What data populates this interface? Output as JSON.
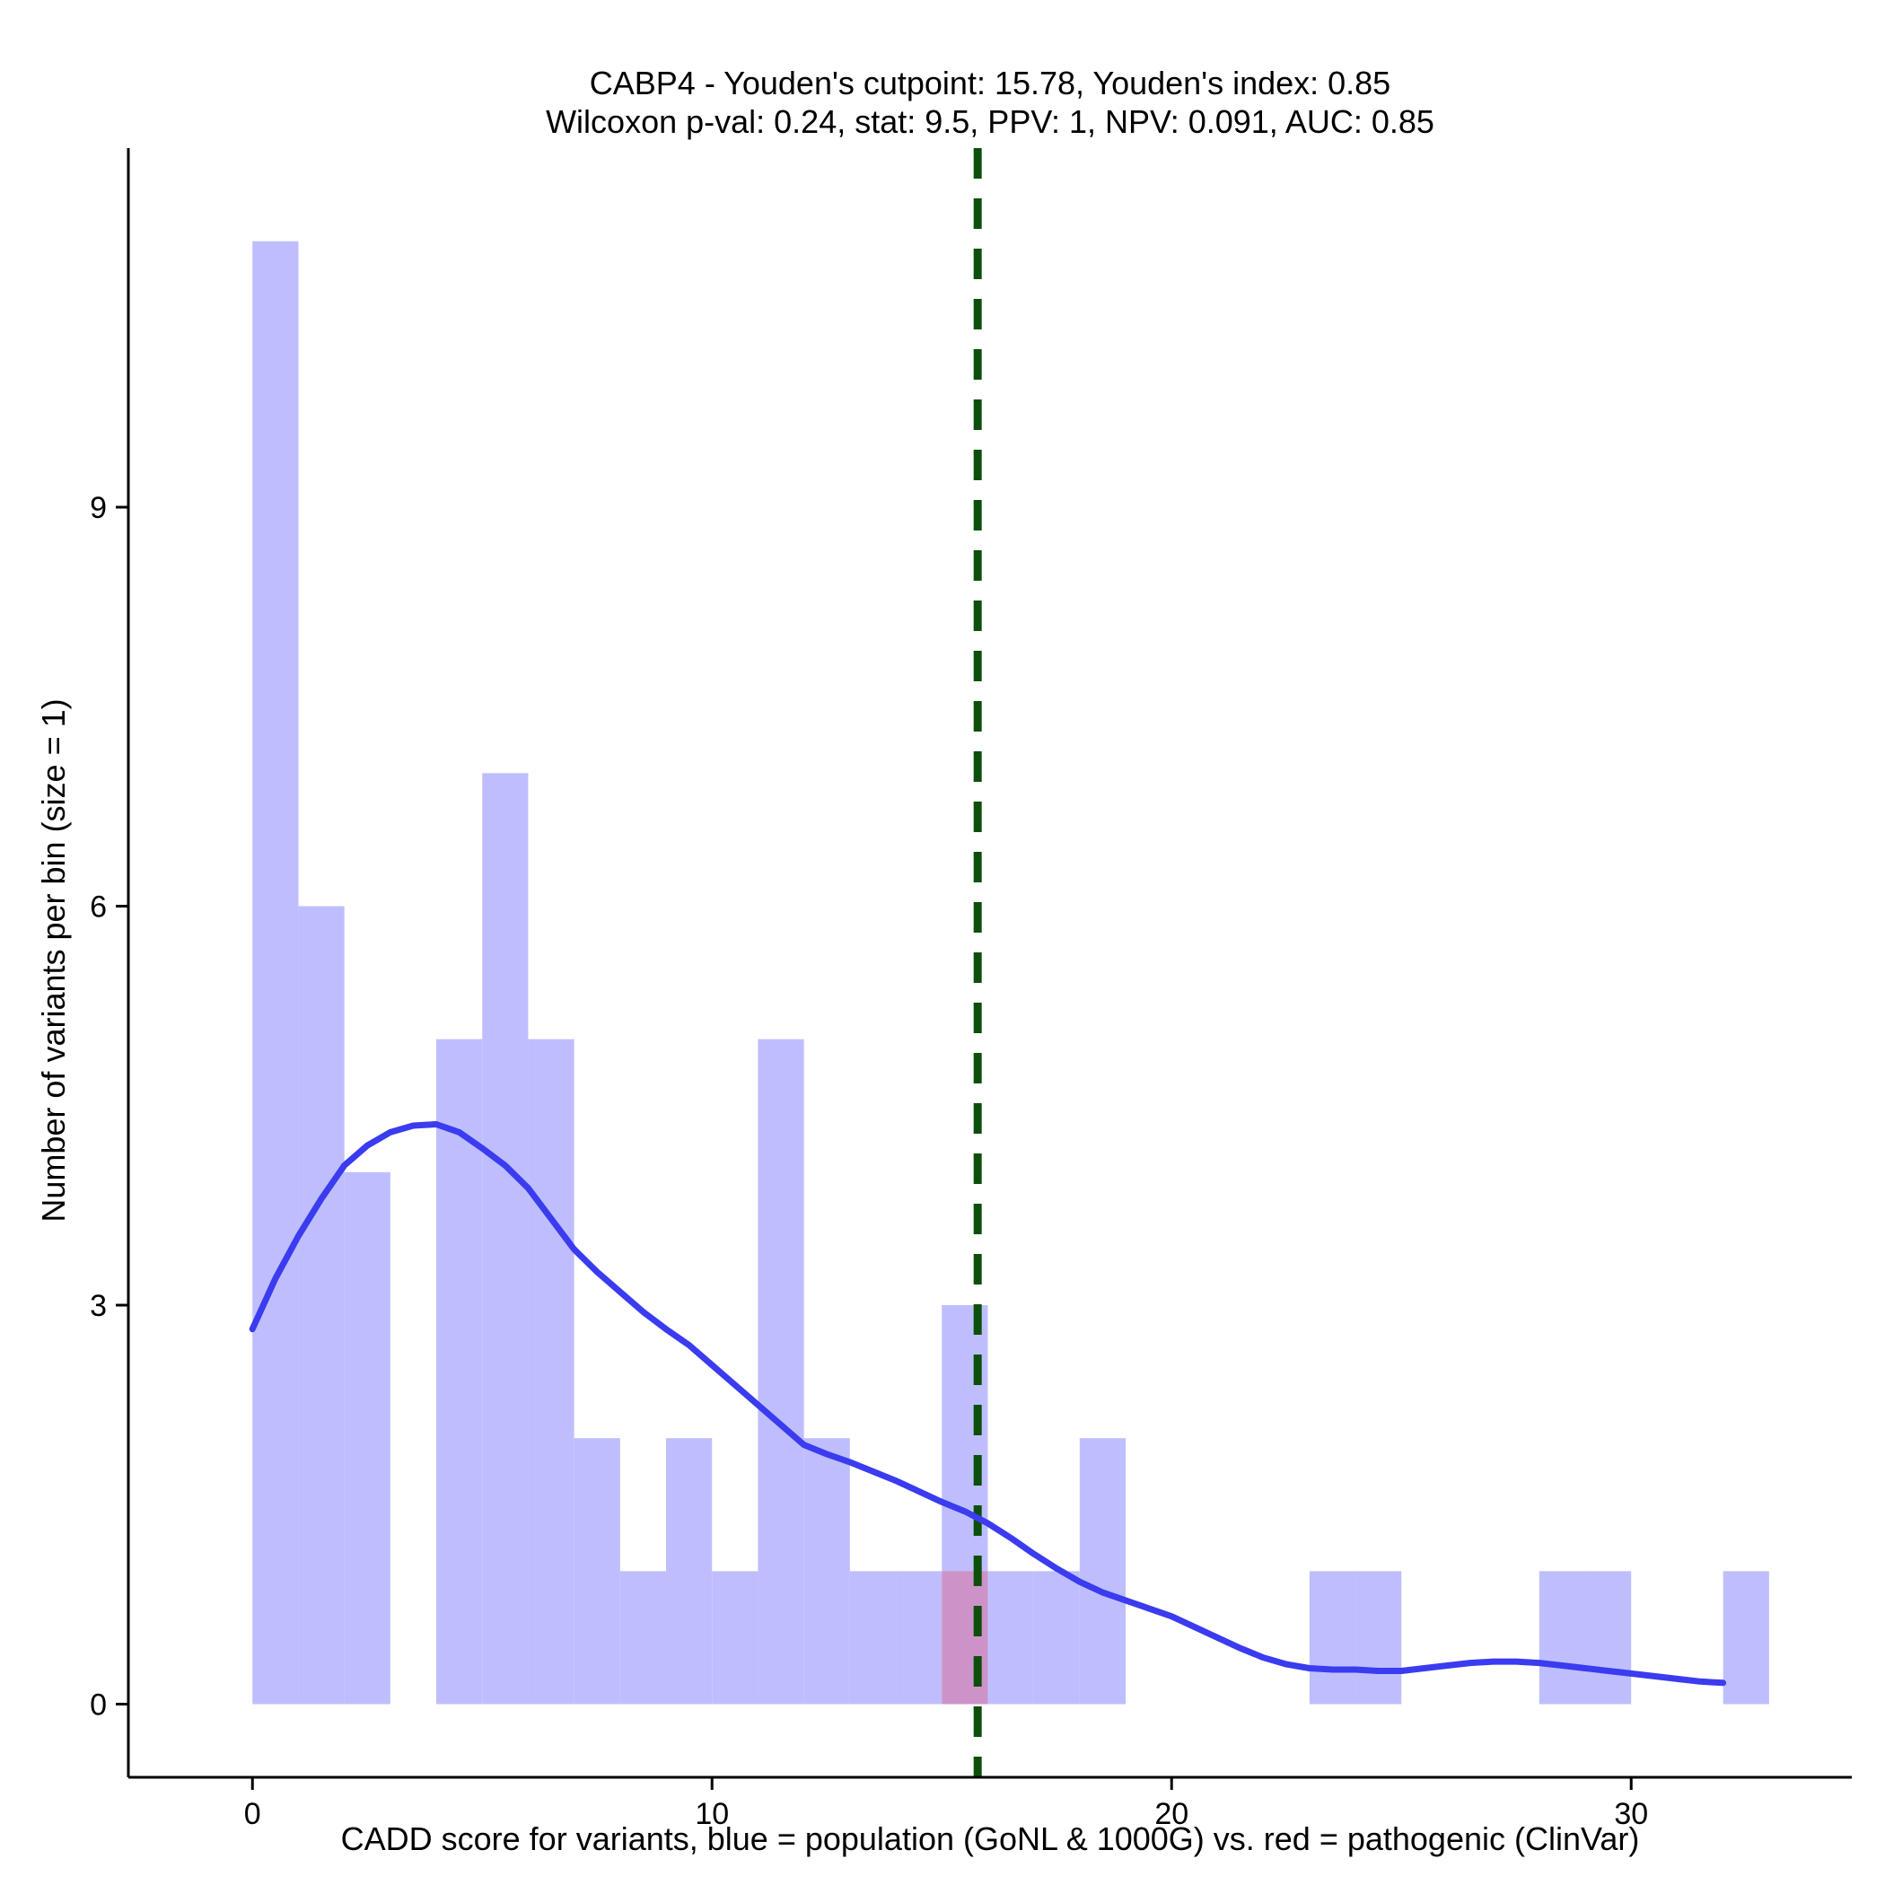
{
  "chart_data": {
    "type": "bar",
    "title_line1": "CABP4 - Youden's cutpoint: 15.78, Youden's index: 0.85",
    "title_line2": "Wilcoxon p-val: 0.24, stat: 9.5, PPV: 1, NPV: 0.091, AUC: 0.85",
    "xlabel": "CADD score for variants, blue = population (GoNL & 1000G) vs. red = pathogenic (ClinVar)",
    "ylabel": "Number of variants per bin (size = 1)",
    "xlim": [
      -2.7,
      34.8
    ],
    "ylim": [
      -0.55,
      11.7
    ],
    "x_ticks": [
      0,
      10,
      20,
      30
    ],
    "y_ticks": [
      0,
      3,
      6,
      9
    ],
    "bin_size": 1,
    "colors": {
      "population": "#bebeff",
      "pathogenic": "#d08cc0",
      "density": "#3b3bf0",
      "cutpoint": "#0b4f0b"
    },
    "series": [
      {
        "key": "population",
        "bins": [
          [
            0,
            11
          ],
          [
            1,
            6
          ],
          [
            2,
            4
          ],
          [
            4,
            5
          ],
          [
            5,
            7
          ],
          [
            6,
            5
          ],
          [
            7,
            2
          ],
          [
            8,
            1
          ],
          [
            9,
            2
          ],
          [
            10,
            1
          ],
          [
            11,
            5
          ],
          [
            12,
            2
          ],
          [
            13,
            1
          ],
          [
            14,
            1
          ],
          [
            15,
            3
          ],
          [
            16,
            1
          ],
          [
            17,
            1
          ],
          [
            18,
            2
          ],
          [
            23,
            1
          ],
          [
            24,
            1
          ],
          [
            28,
            1
          ],
          [
            29,
            1
          ],
          [
            32,
            1
          ]
        ]
      },
      {
        "key": "pathogenic",
        "bins": [
          [
            15,
            1
          ]
        ]
      }
    ],
    "density_curve": [
      [
        0,
        2.82
      ],
      [
        0.5,
        3.2
      ],
      [
        1,
        3.52
      ],
      [
        1.5,
        3.8
      ],
      [
        2,
        4.05
      ],
      [
        2.5,
        4.2
      ],
      [
        3,
        4.3
      ],
      [
        3.5,
        4.35
      ],
      [
        4,
        4.36
      ],
      [
        4.5,
        4.3
      ],
      [
        5,
        4.18
      ],
      [
        5.5,
        4.05
      ],
      [
        6,
        3.88
      ],
      [
        6.5,
        3.65
      ],
      [
        7,
        3.42
      ],
      [
        7.5,
        3.25
      ],
      [
        8,
        3.1
      ],
      [
        8.5,
        2.95
      ],
      [
        9,
        2.82
      ],
      [
        9.5,
        2.7
      ],
      [
        10,
        2.55
      ],
      [
        10.5,
        2.4
      ],
      [
        11,
        2.25
      ],
      [
        11.5,
        2.1
      ],
      [
        12,
        1.95
      ],
      [
        12.5,
        1.88
      ],
      [
        13,
        1.82
      ],
      [
        13.5,
        1.75
      ],
      [
        14,
        1.68
      ],
      [
        14.5,
        1.6
      ],
      [
        15,
        1.52
      ],
      [
        15.5,
        1.45
      ],
      [
        16,
        1.36
      ],
      [
        16.5,
        1.25
      ],
      [
        17,
        1.13
      ],
      [
        17.5,
        1.02
      ],
      [
        18,
        0.92
      ],
      [
        18.5,
        0.84
      ],
      [
        19,
        0.78
      ],
      [
        19.5,
        0.72
      ],
      [
        20,
        0.66
      ],
      [
        20.5,
        0.58
      ],
      [
        21,
        0.5
      ],
      [
        21.5,
        0.42
      ],
      [
        22,
        0.35
      ],
      [
        22.5,
        0.3
      ],
      [
        23,
        0.27
      ],
      [
        23.5,
        0.26
      ],
      [
        24,
        0.26
      ],
      [
        24.5,
        0.25
      ],
      [
        25,
        0.25
      ],
      [
        25.5,
        0.27
      ],
      [
        26,
        0.29
      ],
      [
        26.5,
        0.31
      ],
      [
        27,
        0.32
      ],
      [
        27.5,
        0.32
      ],
      [
        28,
        0.31
      ],
      [
        28.5,
        0.29
      ],
      [
        29,
        0.27
      ],
      [
        29.5,
        0.25
      ],
      [
        30,
        0.23
      ],
      [
        30.5,
        0.21
      ],
      [
        31,
        0.19
      ],
      [
        31.5,
        0.17
      ],
      [
        32,
        0.16
      ]
    ],
    "cutpoint": 15.78,
    "grid": false,
    "legend": "none"
  }
}
